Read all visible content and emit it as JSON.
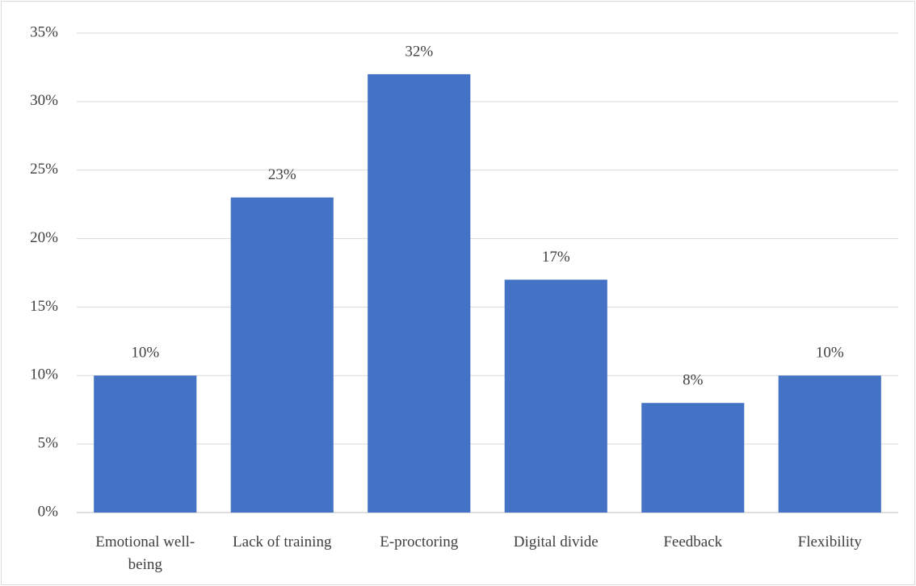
{
  "chart_data": {
    "type": "bar",
    "categories": [
      "Emotional well-being",
      "Lack of training",
      "E-proctoring",
      "Digital divide",
      "Feedback",
      "Flexibility"
    ],
    "values": [
      10,
      23,
      32,
      17,
      8,
      10
    ],
    "value_labels": [
      "10%",
      "23%",
      "32%",
      "17%",
      "8%",
      "10%"
    ],
    "color": "#4472c4",
    "ylim": [
      0,
      35
    ],
    "yticks": [
      {
        "value": 0,
        "label": "0%"
      },
      {
        "value": 5,
        "label": "5%"
      },
      {
        "value": 10,
        "label": "10%"
      },
      {
        "value": 15,
        "label": "15%"
      },
      {
        "value": 20,
        "label": "20%"
      },
      {
        "value": 25,
        "label": "25%"
      },
      {
        "value": 30,
        "label": "30%"
      },
      {
        "value": 35,
        "label": "35%"
      }
    ],
    "grid": true
  }
}
